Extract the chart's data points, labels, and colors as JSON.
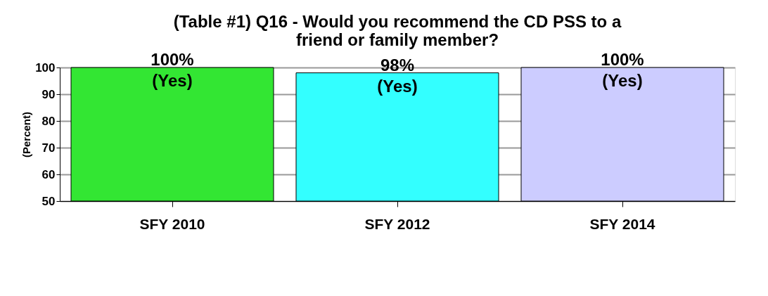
{
  "chart_data": {
    "type": "bar",
    "title": "(Table #1) Q16 - Would you recommend the CD PSS to a friend or family member?",
    "ylabel": "(Percent)",
    "categories": [
      "SFY 2010",
      "SFY 2012",
      "SFY 2014"
    ],
    "values": [
      100,
      98,
      100
    ],
    "colors": [
      "#33e633",
      "#33ffff",
      "#ccccff"
    ],
    "value_labels": [
      "100% (Yes)",
      "98% (Yes)",
      "100% (Yes)"
    ],
    "ylim": [
      50,
      100
    ],
    "yticks": [
      50,
      60,
      70,
      80,
      90,
      100
    ],
    "grid": "y"
  }
}
